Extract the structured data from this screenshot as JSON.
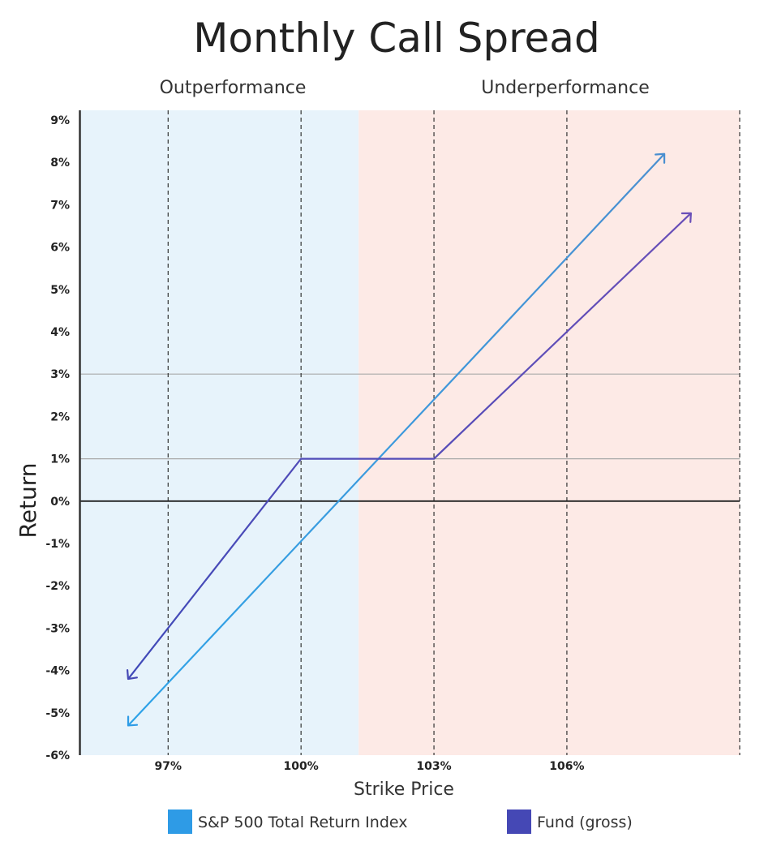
{
  "chart_data": {
    "type": "line",
    "title": "Monthly Call Spread",
    "xlabel": "Strike Price",
    "ylabel": "Return",
    "regions": [
      {
        "label": "Outperformance",
        "color": "#e7f3fb",
        "x_from": 95,
        "x_to": 101.3
      },
      {
        "label": "Underperformance",
        "color": "#fdeae6",
        "x_from": 101.3,
        "x_to": 109.9
      }
    ],
    "xlim": [
      95,
      109.9
    ],
    "ylim": [
      -6,
      9
    ],
    "x_ticks": [
      {
        "value": 97,
        "label": "97%"
      },
      {
        "value": 100,
        "label": "100%"
      },
      {
        "value": 103,
        "label": "103%"
      },
      {
        "value": 106,
        "label": "106%"
      }
    ],
    "vertical_dashed_lines": [
      97,
      100,
      103,
      106,
      109.9
    ],
    "y_ticks": [
      {
        "value": 9,
        "label": "9%"
      },
      {
        "value": 8,
        "label": "8%"
      },
      {
        "value": 7,
        "label": "7%"
      },
      {
        "value": 6,
        "label": "6%"
      },
      {
        "value": 5,
        "label": "5%"
      },
      {
        "value": 4,
        "label": "4%"
      },
      {
        "value": 3,
        "label": "3%"
      },
      {
        "value": 2,
        "label": "2%"
      },
      {
        "value": 1,
        "label": "1%"
      },
      {
        "value": 0,
        "label": "0%"
      },
      {
        "value": -1,
        "label": "-1%"
      },
      {
        "value": -2,
        "label": "-2%"
      },
      {
        "value": -3,
        "label": "-3%"
      },
      {
        "value": -4,
        "label": "-4%"
      },
      {
        "value": -5,
        "label": "-5%"
      },
      {
        "value": -6,
        "label": "-6%"
      }
    ],
    "horizontal_reference_lines": [
      1,
      3
    ],
    "zero_line": 0,
    "series": [
      {
        "name": "S&P 500 Total Return Index",
        "color": "#2e9be6",
        "x": [
          95.0,
          108.2
        ],
        "y": [
          -5.3,
          8.2
        ]
      },
      {
        "name": "Fund (gross)",
        "color": "#4548b5",
        "x": [
          95.0,
          100.0,
          103.0,
          108.8
        ],
        "y": [
          -4.2,
          1.0,
          1.0,
          6.8
        ]
      }
    ]
  }
}
